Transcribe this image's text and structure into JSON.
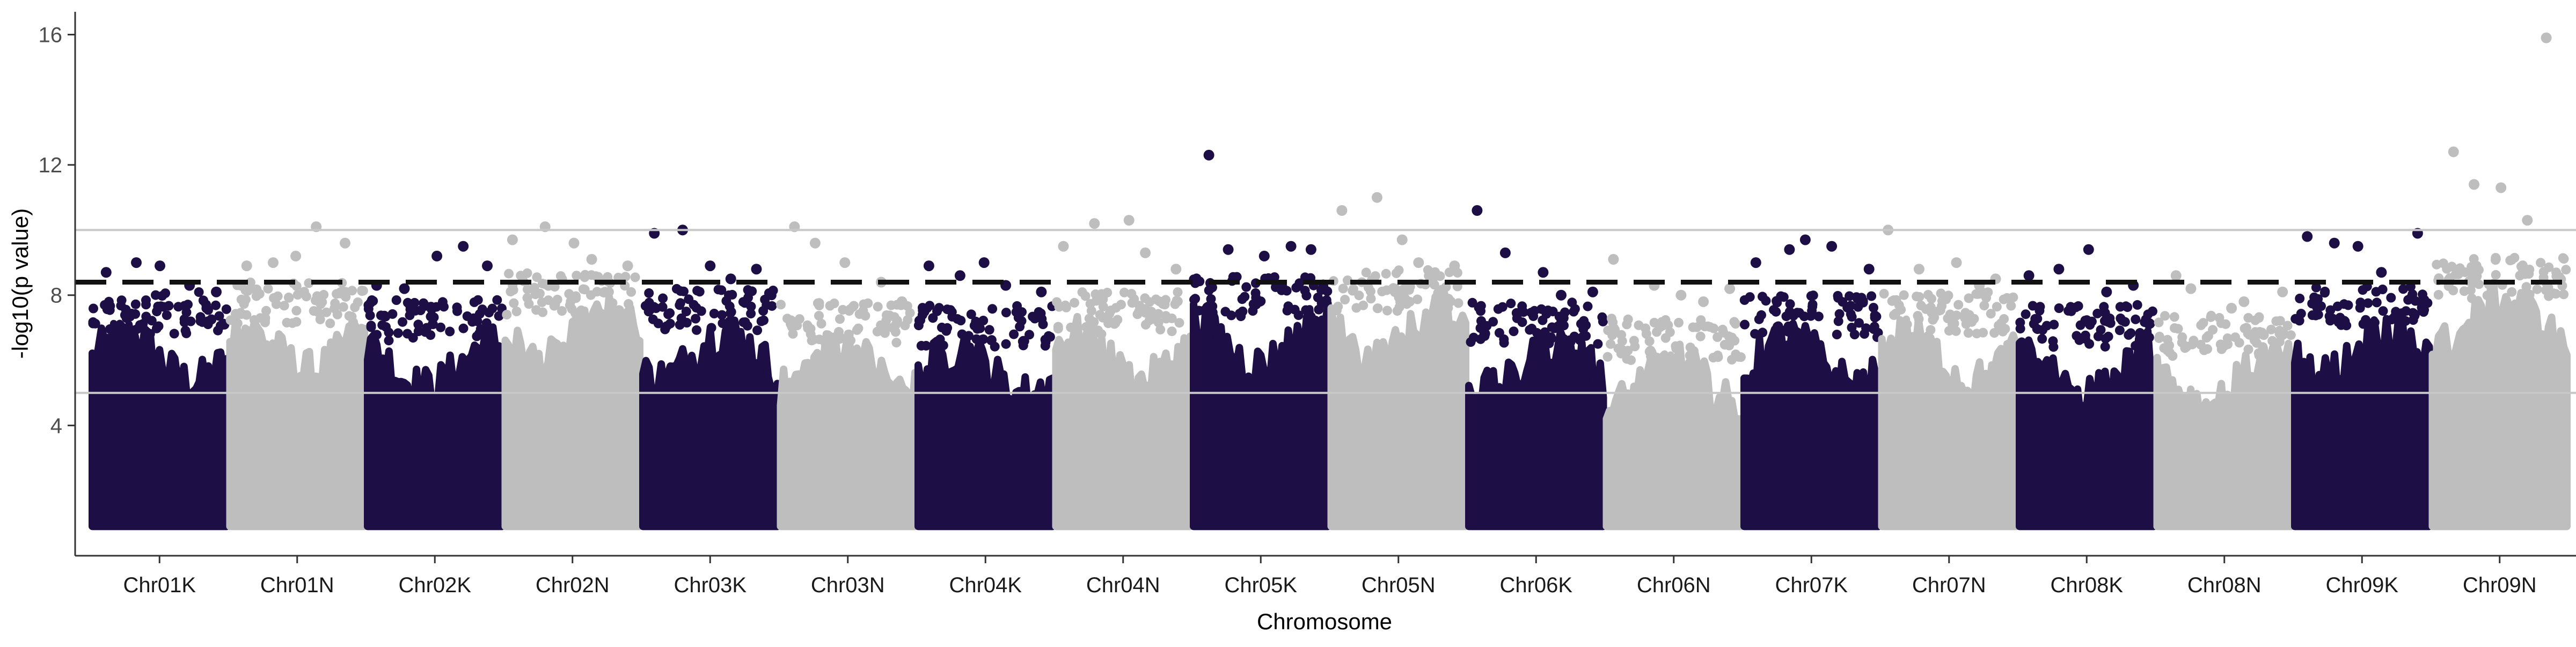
{
  "chart_data": {
    "type": "scatter",
    "title": "",
    "xlabel": "Chromosome",
    "ylabel": "-log10(p value)",
    "ylim": [
      0,
      16.7
    ],
    "yticks": [
      4,
      8,
      12,
      16
    ],
    "grid": false,
    "legend": "none",
    "colors": {
      "dark": "#1d0f45",
      "light": "#bebebe",
      "threshold": "#111111",
      "reference": "#c8c8c8"
    },
    "threshold_lines": [
      {
        "value": 8.4,
        "style": "dashed"
      },
      {
        "value": 10.0,
        "style": "solid"
      },
      {
        "value": 5.0,
        "style": "solid"
      }
    ],
    "baseline": 1.0,
    "categories": [
      "Chr01K",
      "Chr01N",
      "Chr02K",
      "Chr02N",
      "Chr03K",
      "Chr03N",
      "Chr04K",
      "Chr04N",
      "Chr05K",
      "Chr05N",
      "Chr06K",
      "Chr06N",
      "Chr07K",
      "Chr07N",
      "Chr08K",
      "Chr08N",
      "Chr09K",
      "Chr09N"
    ],
    "series": [
      {
        "color": "dark",
        "values": {
          "mean_peak": 7.2,
          "top": [
            8.7,
            9.0,
            8.9,
            8.3,
            8.1
          ]
        }
      },
      {
        "color": "light",
        "values": {
          "mean_peak": 7.5,
          "top": [
            8.9,
            9.0,
            9.2,
            10.1,
            9.6
          ]
        }
      },
      {
        "color": "dark",
        "values": {
          "mean_peak": 7.0,
          "top": [
            8.3,
            8.2,
            9.2,
            9.5,
            8.9
          ]
        }
      },
      {
        "color": "light",
        "values": {
          "mean_peak": 7.8,
          "top": [
            9.7,
            10.1,
            9.6,
            9.1,
            8.9
          ]
        }
      },
      {
        "color": "dark",
        "values": {
          "mean_peak": 7.3,
          "top": [
            9.9,
            10.0,
            8.9,
            8.5,
            8.8
          ]
        }
      },
      {
        "color": "light",
        "values": {
          "mean_peak": 6.9,
          "top": [
            10.1,
            9.6,
            9.0,
            8.4,
            7.8
          ]
        }
      },
      {
        "color": "dark",
        "values": {
          "mean_peak": 6.8,
          "top": [
            8.9,
            8.6,
            9.0,
            8.3,
            8.1
          ]
        }
      },
      {
        "color": "light",
        "values": {
          "mean_peak": 7.2,
          "top": [
            9.5,
            10.2,
            10.3,
            9.3,
            8.8
          ]
        }
      },
      {
        "color": "dark",
        "values": {
          "mean_peak": 7.7,
          "top": [
            12.3,
            9.4,
            9.2,
            9.5,
            9.4
          ]
        }
      },
      {
        "color": "light",
        "values": {
          "mean_peak": 7.9,
          "top": [
            10.6,
            11.0,
            9.7,
            9.0,
            8.9
          ]
        }
      },
      {
        "color": "dark",
        "values": {
          "mean_peak": 6.9,
          "top": [
            10.6,
            9.3,
            8.7,
            8.0,
            8.1
          ]
        }
      },
      {
        "color": "light",
        "values": {
          "mean_peak": 6.4,
          "top": [
            9.1,
            8.3,
            8.0,
            7.8,
            8.2
          ]
        }
      },
      {
        "color": "dark",
        "values": {
          "mean_peak": 7.1,
          "top": [
            9.0,
            9.4,
            9.7,
            9.5,
            8.8
          ]
        }
      },
      {
        "color": "light",
        "values": {
          "mean_peak": 7.2,
          "top": [
            10.0,
            8.8,
            9.0,
            8.3,
            8.5
          ]
        }
      },
      {
        "color": "dark",
        "values": {
          "mean_peak": 6.8,
          "top": [
            8.6,
            8.8,
            9.4,
            8.1,
            8.3
          ]
        }
      },
      {
        "color": "light",
        "values": {
          "mean_peak": 6.5,
          "top": [
            8.6,
            8.2,
            7.6,
            7.8,
            8.1
          ]
        }
      },
      {
        "color": "dark",
        "values": {
          "mean_peak": 7.4,
          "top": [
            9.8,
            9.6,
            9.5,
            8.7,
            9.9
          ]
        }
      },
      {
        "color": "light",
        "values": {
          "mean_peak": 8.3,
          "top": [
            12.4,
            11.4,
            11.3,
            10.3,
            15.9
          ]
        }
      }
    ]
  }
}
